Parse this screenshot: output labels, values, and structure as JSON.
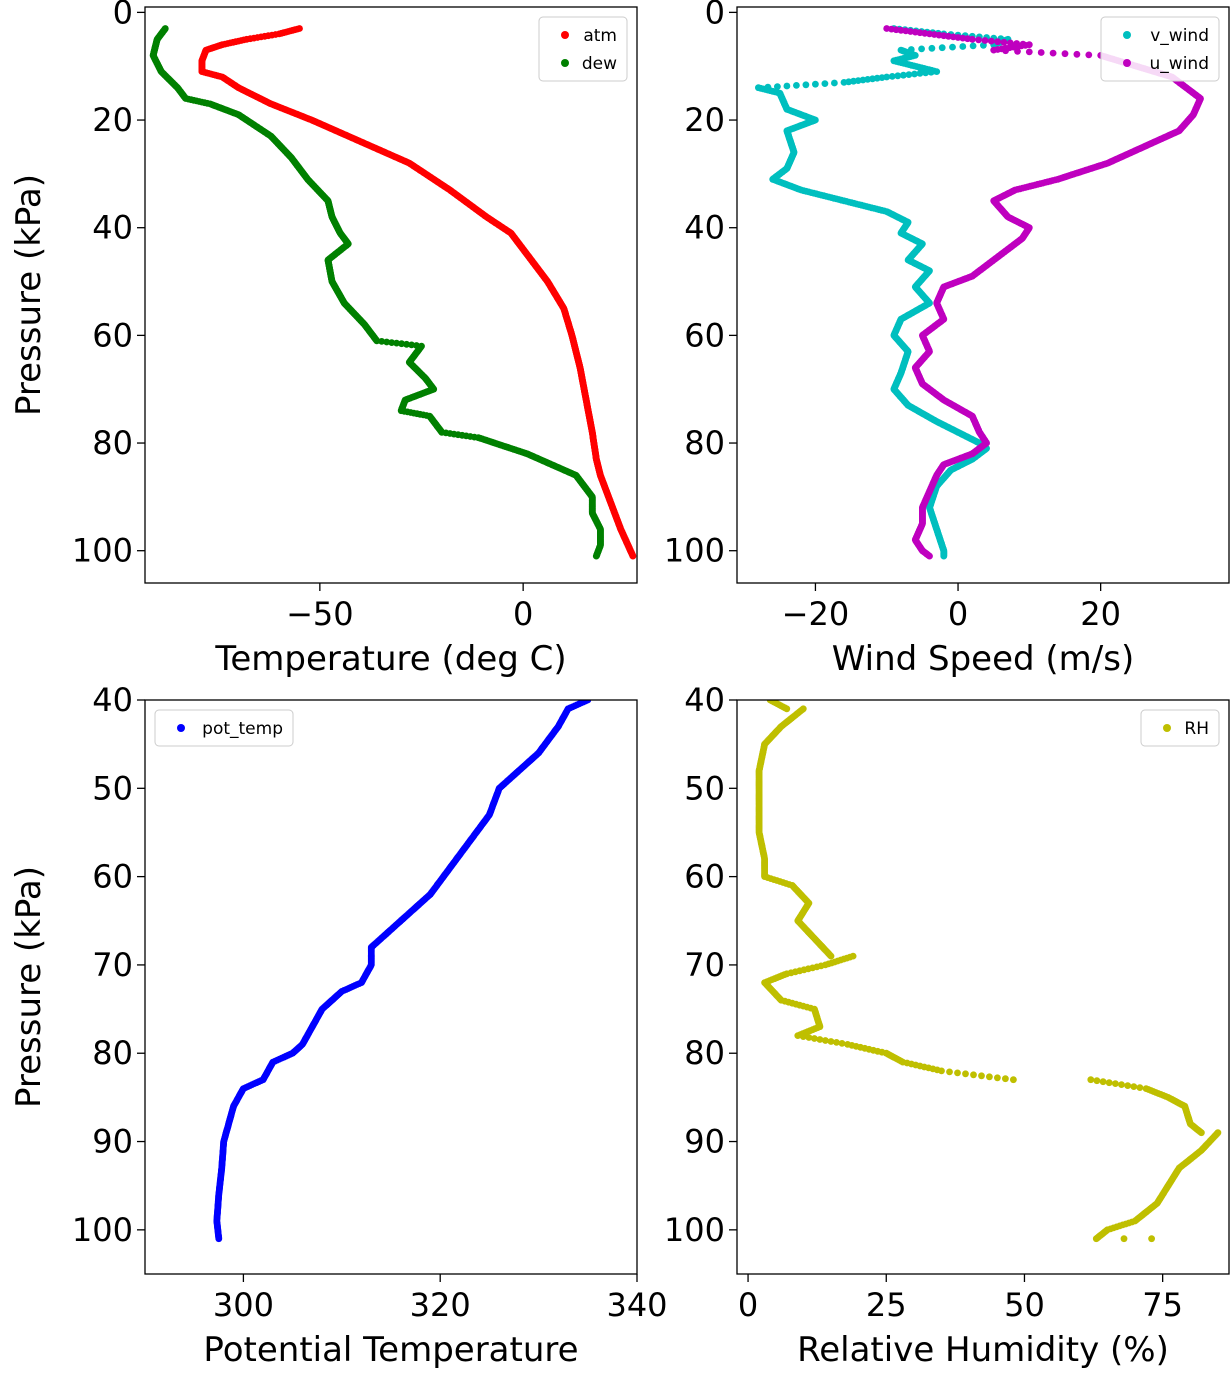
{
  "chart_data": [
    {
      "type": "scatter",
      "xlabel": "Temperature (deg C)",
      "ylabel": "Pressure (kPa)",
      "xlim": [
        -93,
        28
      ],
      "ylim": [
        106,
        -1
      ],
      "y_inverted": true,
      "xticks": [
        -50,
        0
      ],
      "xtick_labels": [
        "−50",
        "0"
      ],
      "yticks": [
        0,
        20,
        40,
        60,
        80,
        100
      ],
      "ytick_labels": [
        "0",
        "20",
        "40",
        "60",
        "80",
        "100"
      ],
      "legend_position": "top-right",
      "grid": false,
      "series": [
        {
          "name": "atm",
          "color": "#ff0000",
          "points": [
            [
              -55,
              3
            ],
            [
              -60,
              4
            ],
            [
              -68,
              5
            ],
            [
              -74,
              6
            ],
            [
              -78,
              7
            ],
            [
              -79,
              9
            ],
            [
              -79,
              11
            ],
            [
              -74,
              12
            ],
            [
              -70,
              14
            ],
            [
              -62,
              17
            ],
            [
              -52,
              20
            ],
            [
              -40,
              24
            ],
            [
              -28,
              28
            ],
            [
              -18,
              33
            ],
            [
              -9,
              38
            ],
            [
              -3,
              41
            ],
            [
              1,
              45
            ],
            [
              6,
              50
            ],
            [
              10,
              55
            ],
            [
              12,
              60
            ],
            [
              14,
              66
            ],
            [
              15,
              70
            ],
            [
              16,
              74
            ],
            [
              17,
              78
            ],
            [
              18,
              83
            ],
            [
              19,
              86
            ],
            [
              21,
              90
            ],
            [
              24,
              96
            ],
            [
              27,
              101
            ]
          ]
        },
        {
          "name": "dew",
          "color": "#008000",
          "points": [
            [
              -88,
              3
            ],
            [
              -90,
              5
            ],
            [
              -91,
              8
            ],
            [
              -89,
              11
            ],
            [
              -85,
              14
            ],
            [
              -83,
              16
            ],
            [
              -77,
              17
            ],
            [
              -70,
              19
            ],
            [
              -62,
              23
            ],
            [
              -57,
              27
            ],
            [
              -53,
              31
            ],
            [
              -48,
              35
            ],
            [
              -47,
              38
            ],
            [
              -45,
              41
            ],
            [
              -43,
              43
            ],
            [
              -48,
              46
            ],
            [
              -47,
              50
            ],
            [
              -44,
              54
            ],
            [
              -39,
              58
            ],
            [
              -36,
              61
            ],
            [
              -25,
              62
            ],
            [
              -28,
              65
            ],
            [
              -24,
              68
            ],
            [
              -22,
              70
            ],
            [
              -29,
              72
            ],
            [
              -30,
              74
            ],
            [
              -23,
              75
            ],
            [
              -20,
              78
            ],
            [
              -11,
              79
            ],
            [
              1,
              82
            ],
            [
              7,
              84
            ],
            [
              13,
              86
            ],
            [
              17,
              90
            ],
            [
              17,
              93
            ],
            [
              19,
              96
            ],
            [
              19,
              99
            ],
            [
              18,
              101
            ]
          ]
        }
      ]
    },
    {
      "type": "scatter",
      "xlabel": "Wind Speed (m/s)",
      "ylabel": "",
      "xlim": [
        -31,
        38
      ],
      "ylim": [
        106,
        -1
      ],
      "y_inverted": true,
      "xticks": [
        -20,
        0,
        20
      ],
      "xtick_labels": [
        "−20",
        "0",
        "20"
      ],
      "yticks": [
        0,
        20,
        40,
        60,
        80,
        100
      ],
      "ytick_labels": [
        "0",
        "20",
        "40",
        "60",
        "80",
        "100"
      ],
      "legend_position": "top-right",
      "grid": false,
      "series": [
        {
          "name": "v_wind",
          "color": "#00bfbf",
          "points": [
            [
              -9,
              3
            ],
            [
              -2,
              4
            ],
            [
              7,
              5
            ],
            [
              5,
              6
            ],
            [
              -8,
              7
            ],
            [
              -6,
              8
            ],
            [
              -9,
              9
            ],
            [
              -3,
              11
            ],
            [
              -10,
              12
            ],
            [
              -16,
              13
            ],
            [
              -28,
              14
            ],
            [
              -25,
              15
            ],
            [
              -24,
              18
            ],
            [
              -20,
              20
            ],
            [
              -24,
              22
            ],
            [
              -23,
              26
            ],
            [
              -24,
              29
            ],
            [
              -26,
              31
            ],
            [
              -22,
              33
            ],
            [
              -16,
              35
            ],
            [
              -10,
              37
            ],
            [
              -7,
              39
            ],
            [
              -8,
              41
            ],
            [
              -5,
              43
            ],
            [
              -7,
              46
            ],
            [
              -4,
              48
            ],
            [
              -6,
              51
            ],
            [
              -4,
              54
            ],
            [
              -8,
              57
            ],
            [
              -9,
              60
            ],
            [
              -7,
              63
            ],
            [
              -8,
              67
            ],
            [
              -9,
              70
            ],
            [
              -7,
              73
            ],
            [
              -3,
              76
            ],
            [
              0,
              78
            ],
            [
              3,
              80
            ],
            [
              4,
              81
            ],
            [
              2,
              83
            ],
            [
              -1,
              85
            ],
            [
              -3,
              88
            ],
            [
              -4,
              92
            ],
            [
              -3,
              96
            ],
            [
              -2,
              100
            ],
            [
              -2,
              101
            ]
          ]
        },
        {
          "name": "u_wind",
          "color": "#bf00bf",
          "points": [
            [
              -10,
              3
            ],
            [
              -4,
              4
            ],
            [
              2,
              5
            ],
            [
              10,
              6
            ],
            [
              5,
              7
            ],
            [
              20,
              8
            ],
            [
              25,
              10
            ],
            [
              30,
              12
            ],
            [
              34,
              16
            ],
            [
              33,
              19
            ],
            [
              31,
              22
            ],
            [
              26,
              25
            ],
            [
              21,
              28
            ],
            [
              14,
              31
            ],
            [
              8,
              33
            ],
            [
              5,
              35
            ],
            [
              7,
              38
            ],
            [
              10,
              40
            ],
            [
              9,
              42
            ],
            [
              7,
              44
            ],
            [
              5,
              46
            ],
            [
              2,
              49
            ],
            [
              -2,
              51
            ],
            [
              -3,
              54
            ],
            [
              -2,
              57
            ],
            [
              -5,
              60
            ],
            [
              -4,
              63
            ],
            [
              -6,
              66
            ],
            [
              -5,
              69
            ],
            [
              -2,
              72
            ],
            [
              2,
              75
            ],
            [
              3,
              78
            ],
            [
              4,
              80
            ],
            [
              2,
              82
            ],
            [
              -2,
              84
            ],
            [
              -3,
              86
            ],
            [
              -4,
              89
            ],
            [
              -5,
              92
            ],
            [
              -5,
              95
            ],
            [
              -6,
              98
            ],
            [
              -5,
              100
            ],
            [
              -4,
              101
            ]
          ]
        }
      ]
    },
    {
      "type": "scatter",
      "xlabel": "Potential Temperature",
      "ylabel": "Pressure (kPa)",
      "xlim": [
        290,
        340
      ],
      "ylim": [
        105,
        40
      ],
      "y_inverted": true,
      "xticks": [
        300,
        320,
        340
      ],
      "xtick_labels": [
        "300",
        "320",
        "340"
      ],
      "yticks": [
        40,
        50,
        60,
        70,
        80,
        90,
        100
      ],
      "ytick_labels": [
        "40",
        "50",
        "60",
        "70",
        "80",
        "90",
        "100"
      ],
      "legend_position": "top-left",
      "grid": false,
      "series": [
        {
          "name": "pot_temp",
          "color": "#0000ff",
          "points": [
            [
              335,
              40
            ],
            [
              333,
              41
            ],
            [
              332,
              43
            ],
            [
              330,
              46
            ],
            [
              328,
              48
            ],
            [
              326,
              50
            ],
            [
              325,
              53
            ],
            [
              323,
              56
            ],
            [
              321,
              59
            ],
            [
              319,
              62
            ],
            [
              317,
              64
            ],
            [
              315,
              66
            ],
            [
              313,
              68
            ],
            [
              313,
              70
            ],
            [
              312,
              72
            ],
            [
              310,
              73
            ],
            [
              309,
              74
            ],
            [
              308,
              75
            ],
            [
              307,
              77
            ],
            [
              306,
              79
            ],
            [
              305,
              80
            ],
            [
              303,
              81
            ],
            [
              302,
              83
            ],
            [
              300,
              84
            ],
            [
              299,
              86
            ],
            [
              298.5,
              88
            ],
            [
              298,
              90
            ],
            [
              297.8,
              93
            ],
            [
              297.5,
              96
            ],
            [
              297.3,
              99
            ],
            [
              297.5,
              101
            ]
          ]
        }
      ]
    },
    {
      "type": "scatter",
      "xlabel": "Relative Humidity (%)",
      "ylabel": "",
      "xlim": [
        -2,
        87
      ],
      "ylim": [
        105,
        40
      ],
      "y_inverted": true,
      "xticks": [
        0,
        25,
        50,
        75
      ],
      "xtick_labels": [
        "0",
        "25",
        "50",
        "75"
      ],
      "yticks": [
        40,
        50,
        60,
        70,
        80,
        90,
        100
      ],
      "ytick_labels": [
        "40",
        "50",
        "60",
        "70",
        "80",
        "90",
        "100"
      ],
      "legend_position": "top-right",
      "grid": false,
      "series": [
        {
          "name": "RH",
          "color": "#bfbf00",
          "points": [
            [
              4,
              40
            ],
            [
              7,
              41
            ],
            [
              10,
              41
            ],
            [
              6,
              43
            ],
            [
              3,
              45
            ],
            [
              2,
              48
            ],
            [
              2,
              52
            ],
            [
              2,
              55
            ],
            [
              3,
              58
            ],
            [
              3,
              60
            ],
            [
              8,
              61
            ],
            [
              11,
              63
            ],
            [
              9,
              65
            ],
            [
              12,
              67
            ],
            [
              15,
              69
            ],
            [
              19,
              69
            ],
            [
              14,
              70
            ],
            [
              7,
              71
            ],
            [
              3,
              72
            ],
            [
              6,
              74
            ],
            [
              12,
              75
            ],
            [
              13,
              77
            ],
            [
              9,
              78
            ],
            [
              18,
              79
            ],
            [
              25,
              80
            ],
            [
              28,
              81
            ],
            [
              35,
              82
            ],
            [
              48,
              83
            ],
            [
              62,
              83
            ],
            [
              72,
              84
            ],
            [
              76,
              85
            ],
            [
              79,
              86
            ],
            [
              80,
              88
            ],
            [
              82,
              89
            ],
            [
              85,
              89
            ],
            [
              82,
              91
            ],
            [
              78,
              93
            ],
            [
              76,
              95
            ],
            [
              74,
              97
            ],
            [
              70,
              99
            ],
            [
              65,
              100
            ],
            [
              63,
              101
            ],
            [
              68,
              101
            ],
            [
              73,
              101
            ]
          ]
        }
      ]
    }
  ]
}
